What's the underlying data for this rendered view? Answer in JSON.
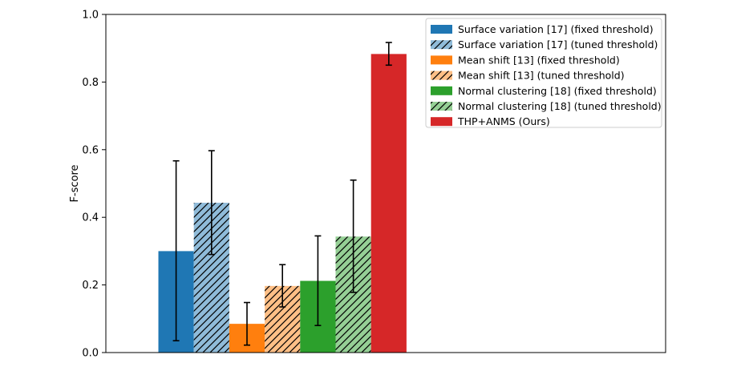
{
  "chart_data": {
    "type": "bar",
    "ylabel": "F-score",
    "xlabel": "",
    "title": "",
    "ylim": [
      0.0,
      1.0
    ],
    "yticks": [
      "0.0",
      "0.2",
      "0.4",
      "0.6",
      "0.8",
      "1.0"
    ],
    "grid": false,
    "legend_position": "top-right",
    "series": [
      {
        "name": "Surface variation [17] (fixed threshold)",
        "value": 0.3,
        "err_low": 0.035,
        "err_high": 0.567,
        "color": "#1f77b4",
        "hatched": false
      },
      {
        "name": "Surface variation [17] (tuned threshold)",
        "value": 0.443,
        "err_low": 0.29,
        "err_high": 0.597,
        "color": "#1f77b4",
        "hatched": true
      },
      {
        "name": "Mean shift [13] (fixed threshold)",
        "value": 0.085,
        "err_low": 0.022,
        "err_high": 0.148,
        "color": "#ff7f0e",
        "hatched": false
      },
      {
        "name": "Mean shift [13] (tuned threshold)",
        "value": 0.197,
        "err_low": 0.135,
        "err_high": 0.26,
        "color": "#ff7f0e",
        "hatched": true
      },
      {
        "name": "Normal clustering [18] (fixed threshold)",
        "value": 0.212,
        "err_low": 0.08,
        "err_high": 0.345,
        "color": "#2ca02c",
        "hatched": false
      },
      {
        "name": "Normal clustering [18] (tuned threshold)",
        "value": 0.343,
        "err_low": 0.178,
        "err_high": 0.51,
        "color": "#2ca02c",
        "hatched": true
      },
      {
        "name": "THP+ANMS (Ours)",
        "value": 0.883,
        "err_low": 0.85,
        "err_high": 0.917,
        "color": "#d62728",
        "hatched": false
      }
    ]
  }
}
